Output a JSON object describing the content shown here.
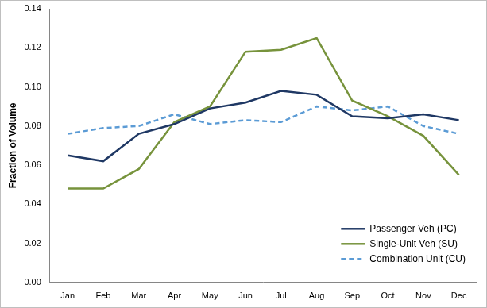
{
  "chart_data": {
    "type": "line",
    "y_label": "Fraction of Volume",
    "categories": [
      "Jan",
      "Feb",
      "Mar",
      "Apr",
      "May",
      "Jun",
      "Jul",
      "Aug",
      "Sep",
      "Oct",
      "Nov",
      "Dec"
    ],
    "series": [
      {
        "name": "Passenger Veh (PC)",
        "color": "#1f3864",
        "line_style": "solid",
        "values": [
          0.065,
          0.062,
          0.076,
          0.081,
          0.089,
          0.092,
          0.098,
          0.096,
          0.085,
          0.084,
          0.086,
          0.083
        ]
      },
      {
        "name": "Single-Unit Veh (SU)",
        "color": "#77933c",
        "line_style": "solid",
        "values": [
          0.048,
          0.048,
          0.058,
          0.082,
          0.09,
          0.118,
          0.119,
          0.125,
          0.093,
          0.085,
          0.075,
          0.055
        ]
      },
      {
        "name": "Combination Unit (CU)",
        "color": "#5b9bd5",
        "line_style": "dashed",
        "values": [
          0.076,
          0.079,
          0.08,
          0.086,
          0.081,
          0.083,
          0.082,
          0.09,
          0.088,
          0.09,
          0.08,
          0.076
        ]
      }
    ],
    "ylim": [
      0,
      0.14
    ],
    "yticks": [
      {
        "value": 0,
        "label": "0.00"
      },
      0.02,
      0.04,
      0.06,
      0.08,
      {
        "value": 0.1,
        "label": "0.10"
      },
      0.12,
      0.14
    ],
    "grid": false,
    "legend": "lower right"
  }
}
